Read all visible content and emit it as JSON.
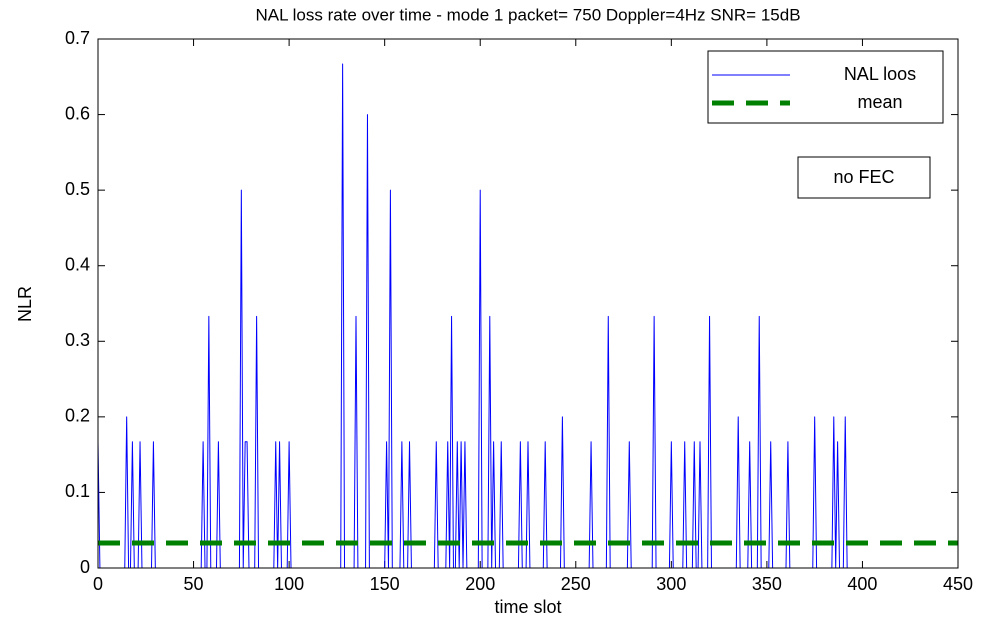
{
  "chart_data": {
    "type": "line",
    "title": "NAL loss rate over time - mode 1 packet= 750 Doppler=4Hz SNR= 15dB",
    "x_label": "time slot",
    "y_label": "NLR",
    "annotation": "no FEC",
    "xlim": [
      0,
      450
    ],
    "ylim": [
      0,
      0.7
    ],
    "xticks": [
      0,
      50,
      100,
      150,
      200,
      250,
      300,
      350,
      400,
      450
    ],
    "yticks": [
      0,
      0.1,
      0.2,
      0.3,
      0.4,
      0.5,
      0.6,
      0.7
    ],
    "grid": false,
    "legend_position": "upper right",
    "series": [
      {
        "name": "NAL loos",
        "color": "#0000ff",
        "line_style": "solid",
        "x": [
          0,
          1,
          14,
          15,
          16,
          17,
          18,
          19,
          21,
          22,
          23,
          28,
          29,
          30,
          54,
          55,
          56,
          57,
          58,
          59,
          62,
          63,
          64,
          74,
          75,
          76,
          77,
          78,
          79,
          82,
          83,
          84,
          92,
          93,
          94,
          95,
          96,
          99,
          100,
          101,
          127,
          128,
          129,
          134,
          135,
          136,
          140,
          141,
          142,
          150,
          151,
          152,
          153,
          154,
          158,
          159,
          160,
          162,
          163,
          164,
          176,
          177,
          178,
          182,
          183,
          184,
          185,
          186,
          187,
          188,
          189,
          190,
          191,
          192,
          193,
          199,
          200,
          201,
          204,
          205,
          206,
          207,
          208,
          210,
          211,
          212,
          220,
          221,
          222,
          224,
          225,
          226,
          233,
          234,
          235,
          242,
          243,
          244,
          257,
          258,
          259,
          266,
          267,
          268,
          277,
          278,
          279,
          290,
          291,
          292,
          299,
          300,
          301,
          306,
          307,
          308,
          311,
          312,
          313,
          314,
          315,
          316,
          319,
          320,
          321,
          334,
          335,
          336,
          340,
          341,
          342,
          345,
          346,
          347,
          351,
          352,
          353,
          360,
          361,
          362,
          374,
          375,
          376,
          384,
          385,
          386,
          387,
          388,
          390,
          391,
          392
        ],
        "values": [
          0.167,
          0,
          0,
          0.2,
          0,
          0,
          0.167,
          0,
          0,
          0.167,
          0,
          0,
          0.167,
          0,
          0,
          0.167,
          0,
          0,
          0.333,
          0,
          0,
          0.167,
          0,
          0,
          0.5,
          0,
          0.167,
          0.167,
          0,
          0,
          0.333,
          0,
          0,
          0.167,
          0,
          0.167,
          0,
          0,
          0.167,
          0,
          0,
          0.667,
          0,
          0,
          0.333,
          0,
          0,
          0.6,
          0,
          0,
          0.167,
          0,
          0.5,
          0,
          0,
          0.167,
          0,
          0,
          0.167,
          0,
          0,
          0.167,
          0,
          0,
          0.167,
          0,
          0.333,
          0,
          0,
          0.167,
          0,
          0.167,
          0,
          0.167,
          0,
          0,
          0.5,
          0,
          0,
          0.333,
          0,
          0.167,
          0,
          0,
          0.167,
          0,
          0,
          0.167,
          0,
          0,
          0.167,
          0,
          0,
          0.167,
          0,
          0,
          0.2,
          0,
          0,
          0.167,
          0,
          0,
          0.333,
          0,
          0,
          0.167,
          0,
          0,
          0.333,
          0,
          0,
          0.167,
          0,
          0,
          0.167,
          0,
          0,
          0.167,
          0,
          0,
          0.167,
          0,
          0,
          0.333,
          0,
          0,
          0.2,
          0,
          0,
          0.167,
          0,
          0,
          0.333,
          0,
          0,
          0.167,
          0,
          0,
          0.167,
          0,
          0,
          0.2,
          0,
          0,
          0.2,
          0,
          0.167,
          0,
          0,
          0.2,
          0
        ]
      },
      {
        "name": "mean",
        "color": "#008000",
        "line_style": "dashed",
        "x": [
          0,
          450
        ],
        "values": [
          0.033,
          0.033
        ]
      }
    ]
  }
}
